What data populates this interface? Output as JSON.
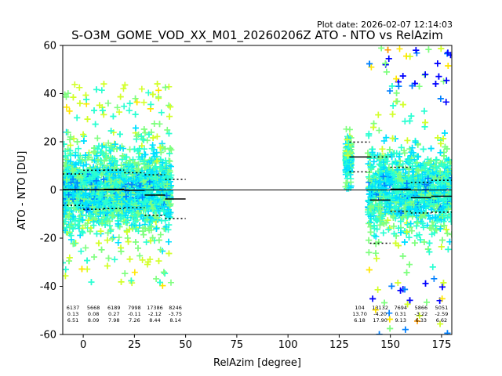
{
  "chart_data": {
    "type": "scatter",
    "title": "S-O3M_GOME_VOD_XX_M01_20260206Z ATO - NTO vs RelAzim",
    "plot_date": "Plot date: 2026-02-07 12:14:03",
    "xlabel": "RelAzim [degree]",
    "ylabel": "ATO - NTO [DU]",
    "xlim": [
      -10,
      180
    ],
    "ylim": [
      -60,
      60
    ],
    "xticks": [
      0,
      25,
      50,
      75,
      100,
      125,
      150,
      175
    ],
    "yticks": [
      -60,
      -40,
      -20,
      0,
      20,
      40,
      60
    ],
    "grid": false,
    "zero_line": 0,
    "clusters": [
      {
        "x_range": [
          -10,
          43
        ],
        "y_min": -40,
        "y_max": 45,
        "core_low": -22,
        "core_high": 22
      },
      {
        "x_range": [
          128,
          131
        ],
        "y_min": 0,
        "y_max": 26,
        "core_low": 3,
        "core_high": 24
      },
      {
        "x_range": [
          139,
          180
        ],
        "y_min": -60,
        "y_max": 60,
        "core_low": -22,
        "core_high": 22
      }
    ],
    "bins": [
      {
        "x0": -10,
        "x1": 0,
        "mean": 0.13,
        "std": 6.51,
        "count": "6137"
      },
      {
        "x0": 0,
        "x1": 10,
        "mean": 0.08,
        "std": 8.09,
        "count": "5668"
      },
      {
        "x0": 10,
        "x1": 20,
        "mean": 0.27,
        "std": 7.98,
        "count": "6189"
      },
      {
        "x0": 20,
        "x1": 30,
        "mean": -0.11,
        "std": 7.26,
        "count": "7998"
      },
      {
        "x0": 30,
        "x1": 40,
        "mean": -2.12,
        "std": 8.44,
        "count": "17386"
      },
      {
        "x0": 40,
        "x1": 50,
        "mean": -3.75,
        "std": 8.14,
        "count": "8246"
      },
      {
        "x0": 130,
        "x1": 140,
        "mean": 13.7,
        "std": 6.18,
        "count": "104"
      },
      {
        "x0": 140,
        "x1": 150,
        "mean": -4.2,
        "std": 17.9,
        "count": "13132"
      },
      {
        "x0": 150,
        "x1": 160,
        "mean": 0.31,
        "std": 9.13,
        "count": "7694"
      },
      {
        "x0": 160,
        "x1": 170,
        "mean": -3.22,
        "std": 6.33,
        "count": "5866"
      },
      {
        "x0": 170,
        "x1": 180,
        "mean": -2.59,
        "std": 6.62,
        "count": "5051"
      }
    ],
    "colormap": [
      "#0000ff",
      "#0080ff",
      "#00e0ff",
      "#2affd2",
      "#7fff7f",
      "#d2ff2a",
      "#ffe600",
      "#ff9900"
    ]
  }
}
